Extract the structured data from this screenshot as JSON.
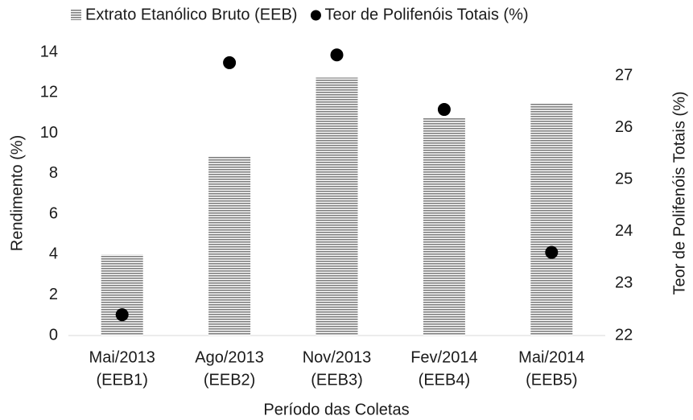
{
  "chart_data": {
    "type": "bar",
    "x_label": "Período das Coletas",
    "y_label": "Rendimento (%)",
    "y2_label": "Teor de Polifenóis Totais (%)",
    "categories": [
      [
        "Mai/2013",
        "(EEB1)"
      ],
      [
        "Ago/2013",
        "(EEB2)"
      ],
      [
        "Nov/2013",
        "(EEB3)"
      ],
      [
        "Fev/2014",
        "(EEB4)"
      ],
      [
        "Mai/2014",
        "(EEB5)"
      ]
    ],
    "series": [
      {
        "name": "Extrato Etanólico Bruto (EEB)",
        "type": "bar",
        "color": "#7f7f7f",
        "values": [
          4.0,
          8.85,
          12.75,
          10.76,
          11.47
        ]
      },
      {
        "name": "Teor de Polifenóis Totais (%)",
        "type": "scatter",
        "axis": "y2",
        "color": "#000000",
        "values": [
          22.4,
          27.25,
          27.4,
          26.35,
          23.6
        ]
      }
    ],
    "ylim": [
      0,
      14
    ],
    "yticks": [
      0,
      2,
      4,
      6,
      8,
      10,
      12,
      14
    ],
    "y2lim": [
      22,
      27.45
    ],
    "y2ticks": [
      22,
      23,
      24,
      25,
      26,
      27
    ],
    "legend": "top"
  }
}
